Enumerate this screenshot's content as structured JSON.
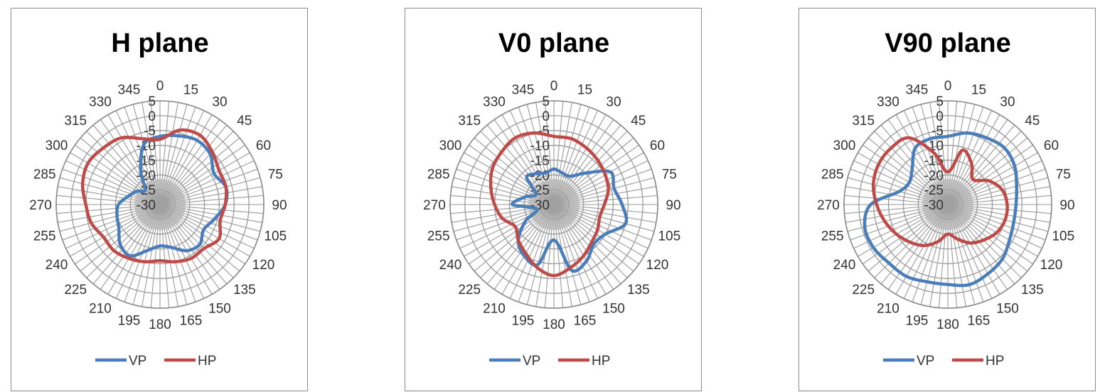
{
  "chart_data": [
    {
      "type": "radar",
      "title": "H plane",
      "angles": [
        0,
        15,
        30,
        45,
        60,
        75,
        90,
        105,
        120,
        135,
        150,
        165,
        180,
        195,
        210,
        225,
        240,
        255,
        270,
        285,
        300,
        315,
        330,
        345
      ],
      "radial_ticks": [
        "5",
        "0",
        "-5",
        "-10",
        "-15",
        "-20",
        "-25",
        "-30"
      ],
      "rlim": [
        -30,
        5
      ],
      "legend_position": "bottom",
      "series": [
        {
          "name": "VP",
          "color": "#4a7ebb",
          "values": [
            -7,
            -6,
            -5,
            -6,
            -9,
            -7,
            -8,
            -11,
            -13,
            -11,
            -12,
            -15,
            -16,
            -14,
            -10,
            -11,
            -14,
            -15,
            -16,
            -19,
            -21,
            -23,
            -17,
            -9
          ]
        },
        {
          "name": "HP",
          "color": "#be4b48",
          "values": [
            -8,
            -4,
            -3,
            -5,
            -7,
            -7,
            -8,
            -9,
            -7,
            -9,
            -9,
            -10,
            -11,
            -10,
            -9,
            -8,
            -8,
            -6,
            -5,
            -3,
            -2,
            -3,
            -4,
            -7
          ]
        }
      ]
    },
    {
      "type": "radar",
      "title": "V0 plane",
      "angles": [
        0,
        15,
        30,
        45,
        60,
        75,
        90,
        105,
        120,
        135,
        150,
        165,
        180,
        195,
        210,
        225,
        240,
        255,
        270,
        285,
        300,
        315,
        330,
        345
      ],
      "radial_ticks": [
        "5",
        "0",
        "-5",
        "-10",
        "-15",
        "-20",
        "-25",
        "-30"
      ],
      "rlim": [
        -30,
        5
      ],
      "legend_position": "bottom",
      "series": [
        {
          "name": "VP",
          "color": "#4a7ebb",
          "values": [
            -18,
            -19,
            -19,
            -15,
            -8,
            -9,
            -7,
            -5,
            -10,
            -11,
            -8,
            -7,
            -18,
            -9,
            -10,
            -13,
            -19,
            -24,
            -16,
            -20,
            -23,
            -17,
            -18,
            -19
          ]
        },
        {
          "name": "HP",
          "color": "#be4b48",
          "values": [
            -7,
            -7,
            -8,
            -9,
            -10,
            -11,
            -13,
            -14,
            -13,
            -12,
            -10,
            -8,
            -6,
            -8,
            -11,
            -13,
            -15,
            -12,
            -10,
            -8,
            -6,
            -5,
            -4,
            -5
          ]
        }
      ]
    },
    {
      "type": "radar",
      "title": "V90 plane",
      "angles": [
        0,
        15,
        30,
        45,
        60,
        75,
        90,
        105,
        120,
        135,
        150,
        165,
        180,
        195,
        210,
        225,
        240,
        255,
        270,
        285,
        300,
        315,
        330,
        345
      ],
      "radial_ticks": [
        "5",
        "0",
        "-5",
        "-10",
        "-15",
        "-20",
        "-25",
        "-30"
      ],
      "rlim": [
        -30,
        5
      ],
      "legend_position": "bottom",
      "series": [
        {
          "name": "VP",
          "color": "#4a7ebb",
          "values": [
            -7,
            -5,
            -4,
            -3,
            -4,
            -6,
            -7,
            -7,
            -6,
            -4,
            -3,
            -2,
            -3,
            -3,
            -2,
            -2,
            -1,
            -1,
            -4,
            -13,
            -15,
            -13,
            -8,
            -7
          ]
        },
        {
          "name": "HP",
          "color": "#be4b48",
          "values": [
            -19,
            -11,
            -14,
            -18,
            -14,
            -11,
            -10,
            -10,
            -11,
            -13,
            -15,
            -18,
            -20,
            -17,
            -14,
            -12,
            -10,
            -8,
            -6,
            -4,
            -3,
            -3,
            -4,
            -12
          ]
        }
      ]
    }
  ]
}
